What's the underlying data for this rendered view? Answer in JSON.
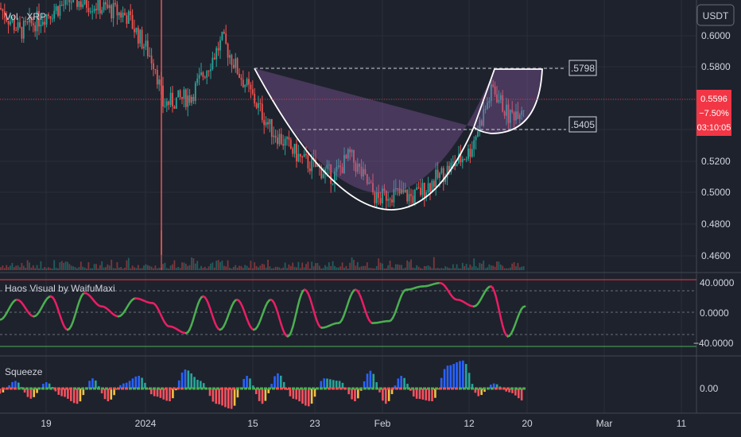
{
  "header": {
    "currency_button": "USDT",
    "symbol_label": "Vol · XRP"
  },
  "price_panel": {
    "y_ticks": [
      "0.6000",
      "0.5800",
      "0.5600",
      "0.5400",
      "0.5200",
      "0.5000",
      "0.4800",
      "0.4600"
    ],
    "last_price": "0.5596",
    "change": "−7.50%",
    "countdown": "03:10:05",
    "resistance_label": ".5798",
    "handle_label": ".5405",
    "colors": {
      "up": "#26a69a",
      "down": "#ef5350",
      "pattern_fill": "#8e5ca8",
      "pattern_line": "#ffffff",
      "price_tag": "#f23645"
    }
  },
  "haos_panel": {
    "title": "Haos Visual by WaifuMaxi",
    "y_ticks": [
      "40.0000",
      "0.0000",
      "−40.0000"
    ],
    "colors": {
      "rising": "#4caf50",
      "falling": "#e91e63",
      "upper_band": "#f23645",
      "lower_band": "#4caf50"
    }
  },
  "squeeze_panel": {
    "title": "Squeeze",
    "y_ticks": [
      "0.00"
    ],
    "colors": {
      "strong_up": "#2962ff",
      "weak_up": "#26a69a",
      "strong_down": "#f7525f",
      "weak_down": "#f5c142"
    }
  },
  "x_axis": {
    "labels": [
      "19",
      "2024",
      "15",
      "23",
      "Feb",
      "12",
      "20",
      "Mar",
      "11"
    ]
  },
  "chart_data": [
    {
      "type": "line",
      "name": "price",
      "x": [
        "Dec 16",
        "Dec 19",
        "Dec 22",
        "Dec 25",
        "Dec 28",
        "Dec 31",
        "Jan 3",
        "Jan 6",
        "Jan 9",
        "Jan 12",
        "Jan 15",
        "Jan 18",
        "Jan 21",
        "Jan 24",
        "Jan 27",
        "Jan 30",
        "Feb 2",
        "Feb 5",
        "Feb 8",
        "Feb 11",
        "Feb 14",
        "Feb 17",
        "Feb 19"
      ],
      "y": [
        0.62,
        0.605,
        0.615,
        0.625,
        0.622,
        0.615,
        0.585,
        0.56,
        0.565,
        0.6,
        0.58,
        0.545,
        0.525,
        0.515,
        0.528,
        0.5,
        0.505,
        0.502,
        0.518,
        0.53,
        0.57,
        0.552,
        0.56
      ],
      "ylim": [
        0.455,
        0.625
      ],
      "annotations": [
        {
          "label": ".5798",
          "y": 0.5798
        },
        {
          "label": ".5405",
          "y": 0.5405
        }
      ]
    },
    {
      "type": "line",
      "name": "oscillator",
      "ylim": [
        -50,
        50
      ],
      "y": [
        -10,
        20,
        -5,
        25,
        -25,
        30,
        10,
        -5,
        22,
        15,
        -20,
        -30,
        25,
        -25,
        20,
        -25,
        20,
        -35,
        35,
        -22,
        -15,
        35,
        -15,
        -12,
        35,
        40,
        45,
        20,
        10,
        40,
        -35,
        10
      ]
    },
    {
      "type": "bar",
      "name": "momentum",
      "y": [
        -4,
        6,
        -8,
        5,
        -6,
        -12,
        8,
        -10,
        4,
        10,
        -6,
        -10,
        15,
        6,
        -12,
        -16,
        10,
        -12,
        12,
        -8,
        -14,
        8,
        6,
        -10,
        14,
        -12,
        10,
        -8,
        -10,
        18,
        22,
        -6,
        4,
        -3,
        -10
      ]
    }
  ]
}
